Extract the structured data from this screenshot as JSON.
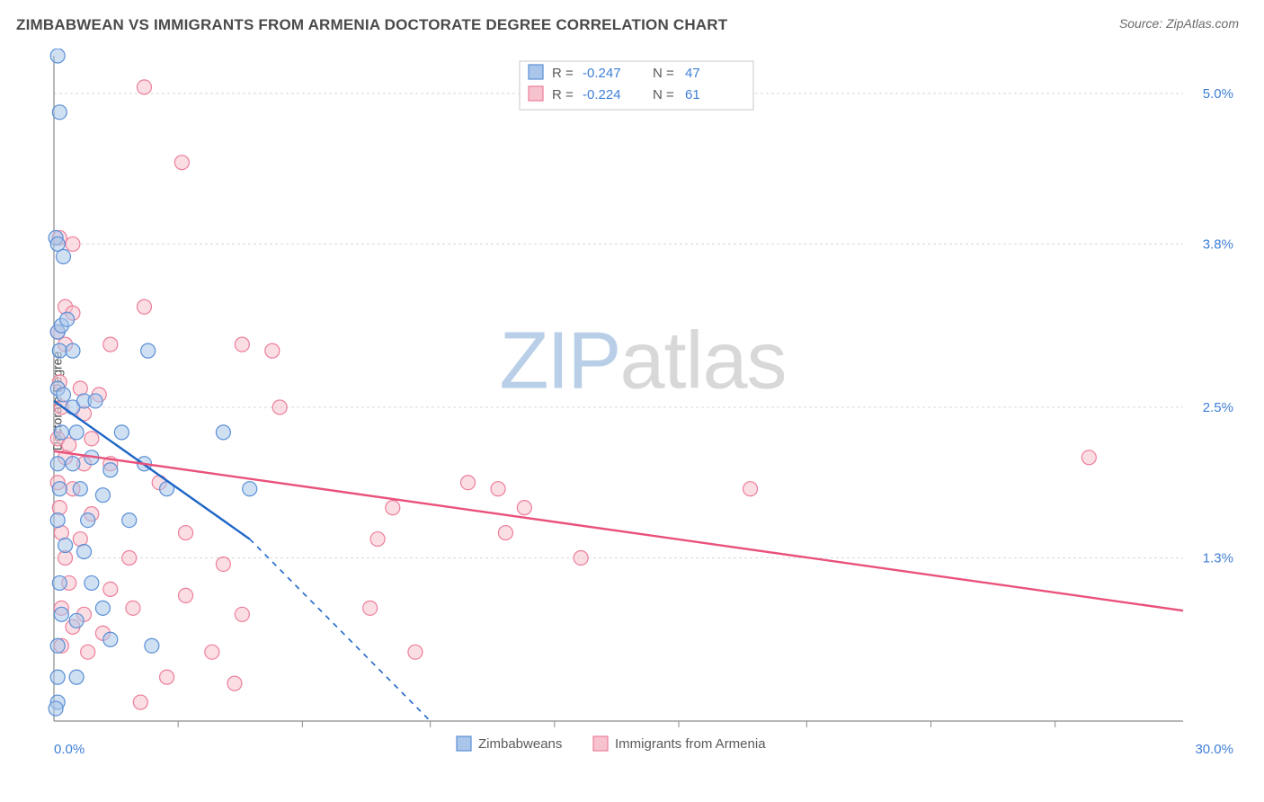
{
  "header": {
    "title": "ZIMBABWEAN VS IMMIGRANTS FROM ARMENIA DOCTORATE DEGREE CORRELATION CHART",
    "source": "Source: ZipAtlas.com"
  },
  "ylabel": "Doctorate Degree",
  "watermark": {
    "pre": "ZIP",
    "post": "atlas"
  },
  "colors": {
    "blue_fill": "#a9c6ea",
    "blue_stroke": "#5a8fd6",
    "pink_fill": "#f6c2ce",
    "pink_stroke": "#ed7e9a",
    "blue_line": "#1e66c7",
    "pink_line": "#e9517a",
    "axis": "#8a8a8a",
    "grid": "#d8d8d8",
    "tick_text_blue": "#3f7fd6",
    "title_text": "#4a4a4a",
    "legend_text": "#5a5a5a",
    "stat_label": "#5a5a5a",
    "stat_value": "#3f7fd6",
    "background": "#ffffff"
  },
  "plot": {
    "x_min": 0.0,
    "x_max": 30.0,
    "y_min": 0.0,
    "y_max": 5.3,
    "y_ticks": [
      {
        "v": 1.3,
        "label": "1.3%"
      },
      {
        "v": 2.5,
        "label": "2.5%"
      },
      {
        "v": 3.8,
        "label": "3.8%"
      },
      {
        "v": 5.0,
        "label": "5.0%"
      }
    ],
    "x_start_label": "0.0%",
    "x_end_label": "30.0%",
    "x_tick_positions": [
      3.3,
      6.6,
      10.0,
      13.3,
      16.6,
      20.0,
      23.3,
      26.6
    ],
    "marker_radius": 8,
    "marker_opacity": 0.55
  },
  "stats_box": {
    "rows": [
      {
        "swatch": "blue",
        "r_label": "R =",
        "r": "-0.247",
        "n_label": "N =",
        "n": "47"
      },
      {
        "swatch": "pink",
        "r_label": "R =",
        "r": "-0.224",
        "n_label": "N =",
        "n": "61"
      }
    ]
  },
  "bottom_legend": [
    {
      "swatch": "blue",
      "label": "Zimbabweans"
    },
    {
      "swatch": "pink",
      "label": "Immigrants from Armenia"
    }
  ],
  "series": {
    "blue": {
      "regression": {
        "x1": 0.0,
        "y1": 2.55,
        "x2": 5.2,
        "y2": 1.45,
        "dash_to_x": 10.0,
        "dash_to_y": 0.0
      },
      "points": [
        [
          0.1,
          5.3
        ],
        [
          0.15,
          4.85
        ],
        [
          0.05,
          3.85
        ],
        [
          0.1,
          3.8
        ],
        [
          0.25,
          3.7
        ],
        [
          0.1,
          3.1
        ],
        [
          0.2,
          3.15
        ],
        [
          0.35,
          3.2
        ],
        [
          0.15,
          2.95
        ],
        [
          0.5,
          2.95
        ],
        [
          2.5,
          2.95
        ],
        [
          0.1,
          2.65
        ],
        [
          0.25,
          2.6
        ],
        [
          0.5,
          2.5
        ],
        [
          0.8,
          2.55
        ],
        [
          1.1,
          2.55
        ],
        [
          0.2,
          2.3
        ],
        [
          0.6,
          2.3
        ],
        [
          1.8,
          2.3
        ],
        [
          4.5,
          2.3
        ],
        [
          0.1,
          2.05
        ],
        [
          0.5,
          2.05
        ],
        [
          1.0,
          2.1
        ],
        [
          1.5,
          2.0
        ],
        [
          2.4,
          2.05
        ],
        [
          0.15,
          1.85
        ],
        [
          0.7,
          1.85
        ],
        [
          1.3,
          1.8
        ],
        [
          3.0,
          1.85
        ],
        [
          5.2,
          1.85
        ],
        [
          0.1,
          1.6
        ],
        [
          0.9,
          1.6
        ],
        [
          2.0,
          1.6
        ],
        [
          0.3,
          1.4
        ],
        [
          0.8,
          1.35
        ],
        [
          0.15,
          1.1
        ],
        [
          1.0,
          1.1
        ],
        [
          0.2,
          0.85
        ],
        [
          1.3,
          0.9
        ],
        [
          0.6,
          0.8
        ],
        [
          0.1,
          0.6
        ],
        [
          1.5,
          0.65
        ],
        [
          2.6,
          0.6
        ],
        [
          0.1,
          0.35
        ],
        [
          0.6,
          0.35
        ],
        [
          0.1,
          0.15
        ],
        [
          0.05,
          0.1
        ]
      ]
    },
    "pink": {
      "regression": {
        "x1": 0.0,
        "y1": 2.15,
        "x2": 30.0,
        "y2": 0.88
      },
      "points": [
        [
          2.4,
          5.05
        ],
        [
          3.4,
          4.45
        ],
        [
          0.15,
          3.85
        ],
        [
          0.5,
          3.8
        ],
        [
          0.3,
          3.3
        ],
        [
          0.5,
          3.25
        ],
        [
          2.4,
          3.3
        ],
        [
          0.1,
          3.1
        ],
        [
          0.3,
          3.0
        ],
        [
          1.5,
          3.0
        ],
        [
          5.0,
          3.0
        ],
        [
          5.8,
          2.95
        ],
        [
          0.15,
          2.7
        ],
        [
          0.7,
          2.65
        ],
        [
          1.2,
          2.6
        ],
        [
          0.2,
          2.5
        ],
        [
          0.8,
          2.45
        ],
        [
          6.0,
          2.5
        ],
        [
          0.1,
          2.25
        ],
        [
          0.4,
          2.2
        ],
        [
          1.0,
          2.25
        ],
        [
          0.3,
          2.1
        ],
        [
          0.8,
          2.05
        ],
        [
          1.5,
          2.05
        ],
        [
          27.5,
          2.1
        ],
        [
          0.1,
          1.9
        ],
        [
          0.5,
          1.85
        ],
        [
          2.8,
          1.9
        ],
        [
          11.0,
          1.9
        ],
        [
          11.8,
          1.85
        ],
        [
          18.5,
          1.85
        ],
        [
          0.15,
          1.7
        ],
        [
          1.0,
          1.65
        ],
        [
          9.0,
          1.7
        ],
        [
          12.5,
          1.7
        ],
        [
          0.2,
          1.5
        ],
        [
          0.7,
          1.45
        ],
        [
          3.5,
          1.5
        ],
        [
          8.6,
          1.45
        ],
        [
          12.0,
          1.5
        ],
        [
          0.3,
          1.3
        ],
        [
          2.0,
          1.3
        ],
        [
          4.5,
          1.25
        ],
        [
          14.0,
          1.3
        ],
        [
          0.4,
          1.1
        ],
        [
          1.5,
          1.05
        ],
        [
          3.5,
          1.0
        ],
        [
          0.2,
          0.9
        ],
        [
          0.8,
          0.85
        ],
        [
          2.1,
          0.9
        ],
        [
          5.0,
          0.85
        ],
        [
          8.4,
          0.9
        ],
        [
          0.5,
          0.75
        ],
        [
          1.3,
          0.7
        ],
        [
          0.2,
          0.6
        ],
        [
          0.9,
          0.55
        ],
        [
          4.2,
          0.55
        ],
        [
          9.6,
          0.55
        ],
        [
          3.0,
          0.35
        ],
        [
          4.8,
          0.3
        ],
        [
          2.3,
          0.15
        ]
      ]
    }
  }
}
